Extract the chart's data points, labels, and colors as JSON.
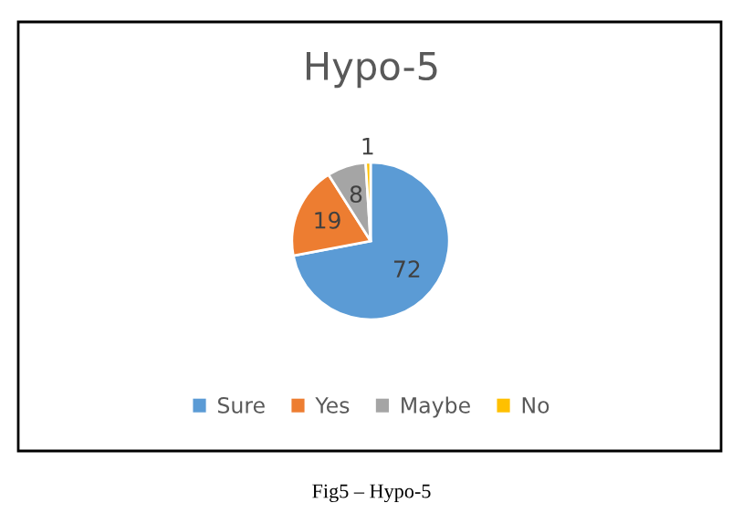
{
  "chart_data": {
    "type": "pie",
    "title": "Hypo-5",
    "categories": [
      "Sure",
      "Yes",
      "Maybe",
      "No"
    ],
    "values": [
      72,
      19,
      8,
      1
    ],
    "colors": [
      "#5b9bd5",
      "#ed7d31",
      "#a5a5a5",
      "#ffc000"
    ],
    "data_labels": true,
    "legend": "bottom",
    "annotations": [
      "Fig5 – Hypo-5"
    ]
  }
}
